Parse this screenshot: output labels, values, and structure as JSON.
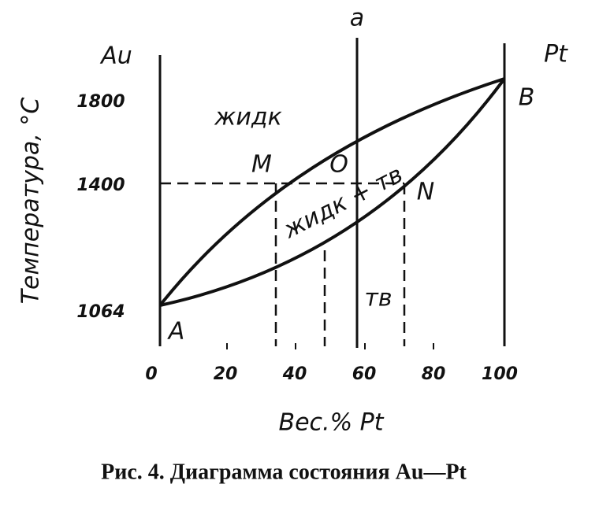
{
  "diagram": {
    "axis": {
      "y_title": "Температура, °С",
      "x_title": "Вес.% Pt",
      "y_ticks": [
        "1800",
        "1400",
        "1064"
      ],
      "x_ticks": [
        "0",
        "20",
        "40",
        "60",
        "80",
        "100"
      ]
    },
    "labels": {
      "left_element": "Au",
      "right_element": "Pt",
      "vertical_line": "a",
      "point_a": "A",
      "point_b": "B",
      "point_m": "M",
      "point_o": "O",
      "point_n": "N",
      "liquid": "жидк",
      "two_phase": "жидк + тв",
      "solid": "тв"
    },
    "caption": "Рис. 4. Диаграмма состояния Au—Pt"
  }
}
